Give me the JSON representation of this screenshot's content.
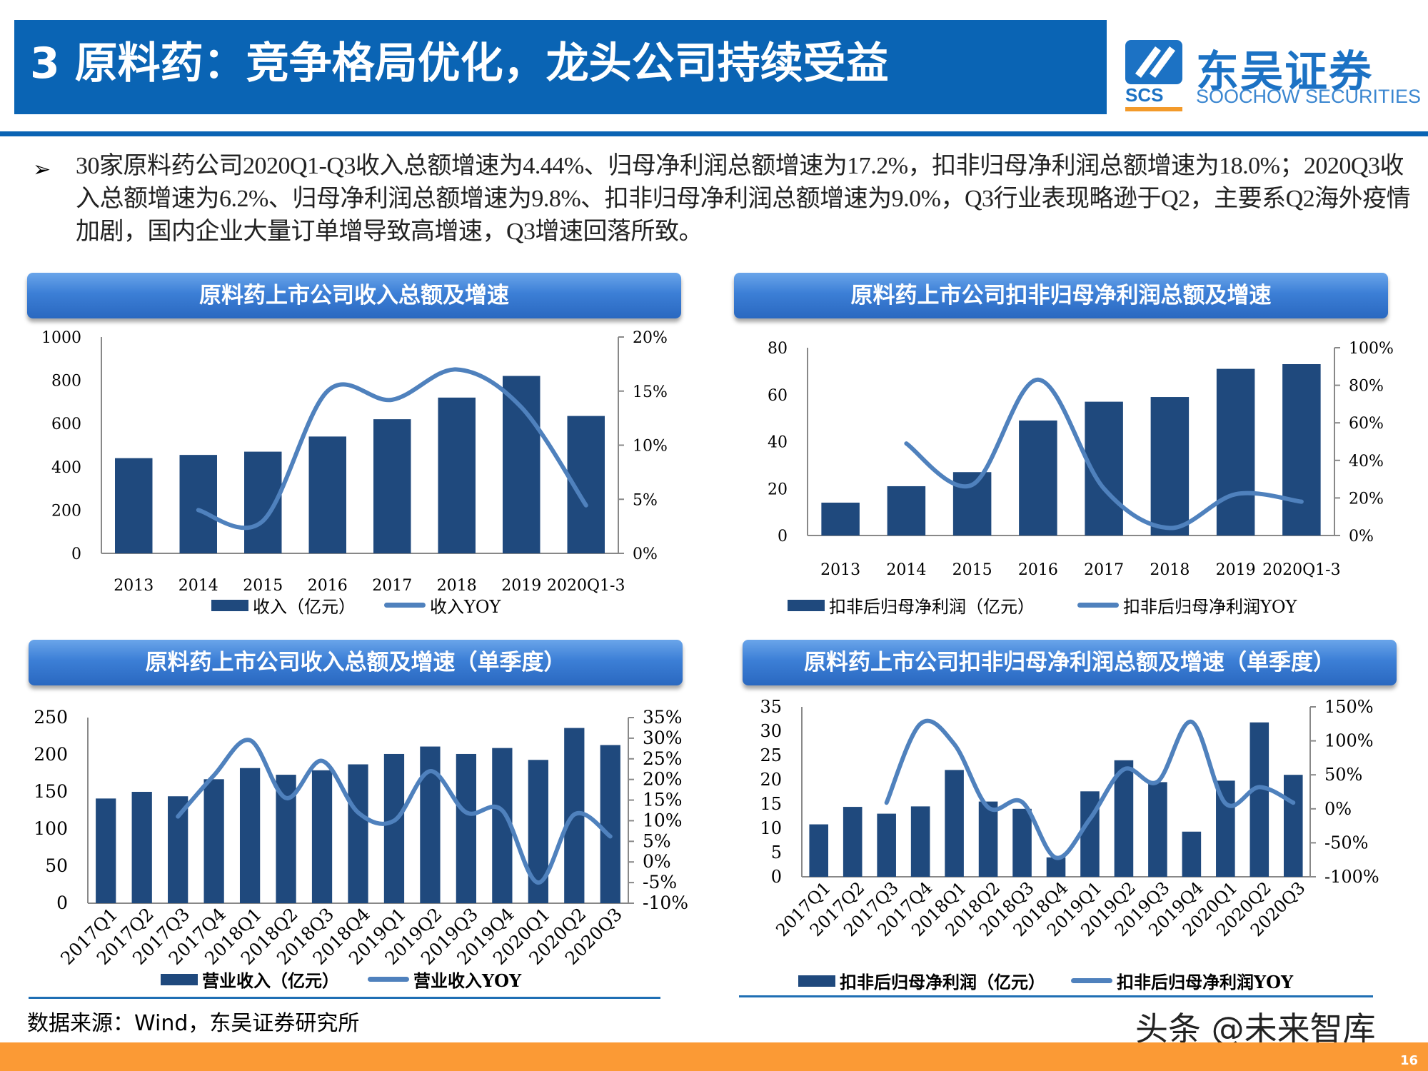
{
  "header": {
    "title": "3 原料药：竞争格局优化，龙头公司持续受益"
  },
  "logo": {
    "cn": "东吴证券",
    "en": "SOOCHOW SECURITIES",
    "abbr": "SCS"
  },
  "body": {
    "bullet": "➢",
    "text": "30家原料药公司2020Q1-Q3收入总额增速为4.44%、归母净利润总额增速为17.2%，扣非归母净利润总额增速为18.0%；2020Q3收入总额增速为6.2%、归母净利润总额增速为9.8%、扣非归母净利润总额增速为9.0%，Q3行业表现略逊于Q2，主要系Q2海外疫情加剧，国内企业大量订单增导致高增速，Q3增速回落所致。"
  },
  "colors": {
    "bar": "#1f497d",
    "line": "#4f81bd",
    "header": "#0a64b4",
    "footer": "#fb9a35"
  },
  "chart_data": [
    {
      "type": "bar+line",
      "title": "原料药上市公司收入总额及增速",
      "categories": [
        "2013",
        "2014",
        "2015",
        "2016",
        "2017",
        "2018",
        "2019",
        "2020Q1-3"
      ],
      "series": [
        {
          "name": "收入（亿元）",
          "type": "bar",
          "axis": "left",
          "values": [
            440,
            455,
            470,
            540,
            620,
            720,
            820,
            635
          ]
        },
        {
          "name": "收入YOY",
          "type": "line",
          "axis": "right",
          "values": [
            null,
            4.0,
            3.0,
            15.0,
            14.2,
            17.0,
            13.5,
            4.44
          ]
        }
      ],
      "left_axis": {
        "ylim": [
          0,
          1000
        ],
        "ticks": [
          "0",
          "200",
          "400",
          "600",
          "800",
          "1000"
        ]
      },
      "right_axis": {
        "ylim": [
          0,
          20
        ],
        "ticks": [
          "0%",
          "5%",
          "10%",
          "15%",
          "20%"
        ]
      },
      "legend": "bottom"
    },
    {
      "type": "bar+line",
      "title": "原料药上市公司扣非归母净利润总额及增速",
      "categories": [
        "2013",
        "2014",
        "2015",
        "2016",
        "2017",
        "2018",
        "2019",
        "2020Q1-3"
      ],
      "series": [
        {
          "name": "扣非后归母净利润（亿元）",
          "type": "bar",
          "axis": "left",
          "values": [
            14,
            21,
            27,
            49,
            57,
            59,
            71,
            73
          ]
        },
        {
          "name": "扣非后归母净利润YOY",
          "type": "line",
          "axis": "right",
          "values": [
            null,
            49,
            27,
            83,
            25,
            4,
            22,
            18
          ]
        }
      ],
      "left_axis": {
        "ylim": [
          0,
          80
        ],
        "ticks": [
          "0",
          "20",
          "40",
          "60",
          "80"
        ]
      },
      "right_axis": {
        "ylim": [
          0,
          100
        ],
        "ticks": [
          "0%",
          "20%",
          "40%",
          "60%",
          "80%",
          "100%"
        ]
      },
      "legend": "bottom"
    },
    {
      "type": "bar+line",
      "title": "原料药上市公司收入总额及增速（单季度）",
      "categories": [
        "2017Q1",
        "2017Q2",
        "2017Q3",
        "2017Q4",
        "2018Q1",
        "2018Q2",
        "2018Q3",
        "2018Q4",
        "2019Q1",
        "2019Q2",
        "2019Q3",
        "2019Q4",
        "2020Q1",
        "2020Q2",
        "2020Q3"
      ],
      "series": [
        {
          "name": "营业收入（亿元）",
          "type": "bar",
          "axis": "left",
          "values": [
            141,
            150,
            144,
            167,
            182,
            173,
            179,
            187,
            201,
            211,
            201,
            209,
            193,
            236,
            213
          ]
        },
        {
          "name": "营业收入YOY",
          "type": "line",
          "axis": "right",
          "values": [
            null,
            null,
            11,
            21,
            29.5,
            15.5,
            24.5,
            12,
            10,
            22,
            12,
            12.5,
            -5,
            11.5,
            6.2
          ]
        }
      ],
      "left_axis": {
        "ylim": [
          0,
          250
        ],
        "ticks": [
          "0",
          "50",
          "100",
          "150",
          "200",
          "250"
        ]
      },
      "right_axis": {
        "ylim": [
          -10,
          35
        ],
        "ticks": [
          "-10%",
          "-5%",
          "0%",
          "5%",
          "10%",
          "15%",
          "20%",
          "25%",
          "30%",
          "35%"
        ]
      },
      "legend": "bottom"
    },
    {
      "type": "bar+line",
      "title": "原料药上市公司扣非归母净利润总额及增速（单季度）",
      "categories": [
        "2017Q1",
        "2017Q2",
        "2017Q3",
        "2017Q4",
        "2018Q1",
        "2018Q2",
        "2018Q3",
        "2018Q4",
        "2019Q1",
        "2019Q2",
        "2019Q3",
        "2019Q4",
        "2020Q1",
        "2020Q2",
        "2020Q3"
      ],
      "series": [
        {
          "name": "扣非后归母净利润（亿元）",
          "type": "bar",
          "axis": "left",
          "values": [
            10.8,
            14.4,
            13,
            14.5,
            22,
            15.5,
            14,
            4,
            17.6,
            24,
            19.5,
            9.3,
            19.8,
            31.8,
            21
          ]
        },
        {
          "name": "扣非后归母净利润YOY",
          "type": "line",
          "axis": "right",
          "values": [
            null,
            null,
            9,
            125,
            95,
            2,
            10,
            -72,
            -15,
            58,
            40,
            128,
            8,
            32,
            9
          ]
        }
      ],
      "left_axis": {
        "ylim": [
          0,
          35
        ],
        "ticks": [
          "0",
          "5",
          "10",
          "15",
          "20",
          "25",
          "30",
          "35"
        ]
      },
      "right_axis": {
        "ylim": [
          -100,
          150
        ],
        "ticks": [
          "-100%",
          "-50%",
          "0%",
          "50%",
          "100%",
          "150%"
        ]
      },
      "legend": "bottom"
    }
  ],
  "footer": {
    "source": "数据来源：Wind，东吴证券研究所",
    "watermark": "头条 @未来智库",
    "page": "16"
  }
}
